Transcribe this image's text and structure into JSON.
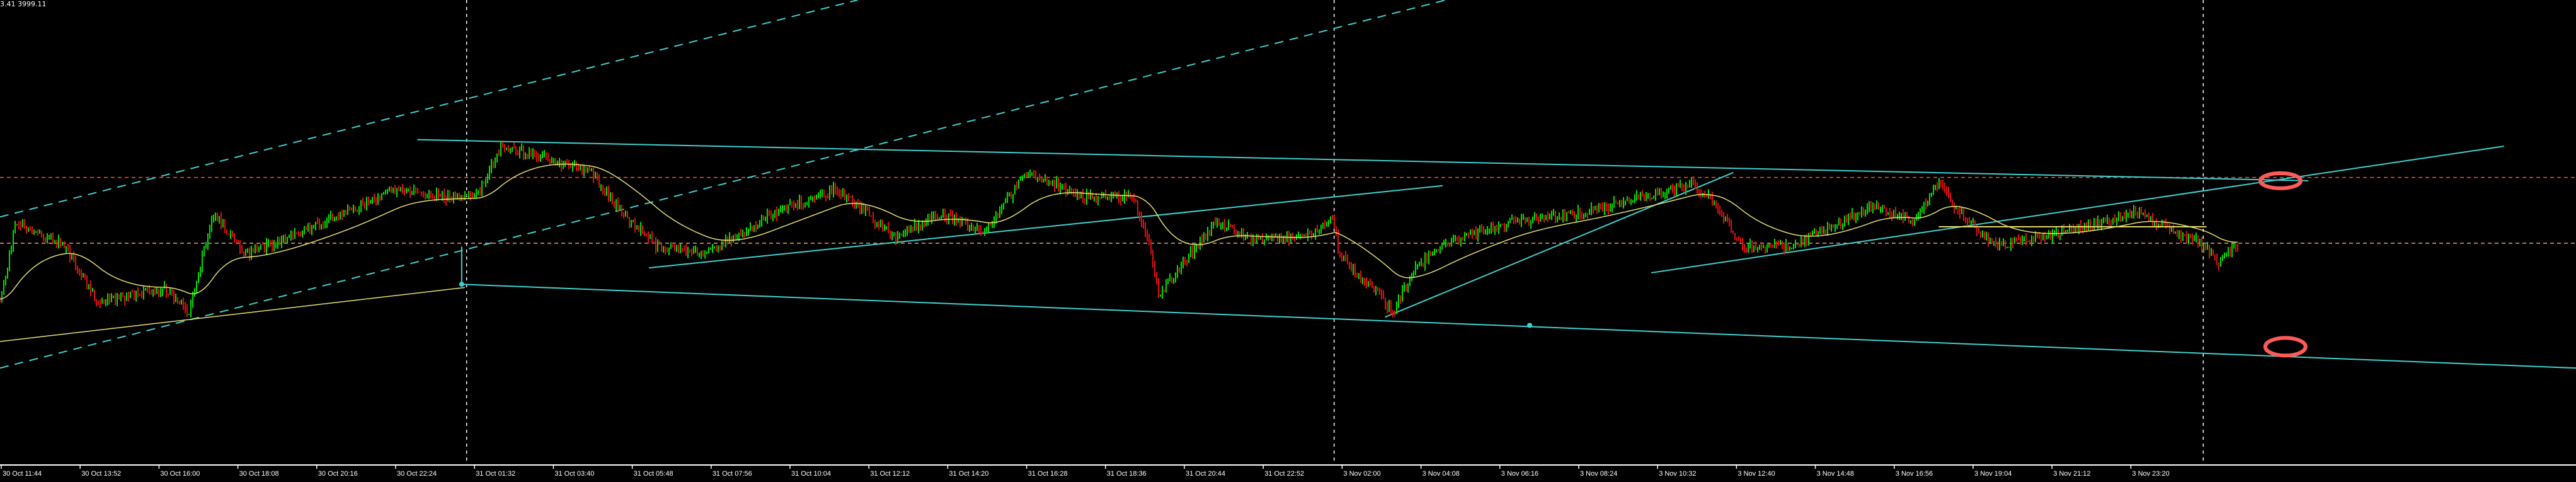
{
  "header": {
    "ohlc_text": "3.41 3999.11"
  },
  "colors": {
    "background": "#000000",
    "bull_bar": "#00e000",
    "bear_bar": "#e01010",
    "trendline": "#40d0d0",
    "moving_average": "#e8e070",
    "resistance_line": "#ff5040",
    "price_line": "#e8a080",
    "highlight_circle": "#ff5a5a",
    "grid_separator": "#ffffff"
  },
  "chart_data": {
    "type": "candlestick",
    "title": "",
    "grid": false,
    "x_tick_labels": [
      "30 Oct 11:44",
      "30 Oct 13:52",
      "30 Oct 16:00",
      "30 Oct 18:08",
      "30 Oct 20:16",
      "30 Oct 22:24",
      "31 Oct 01:32",
      "31 Oct 03:40",
      "31 Oct 05:48",
      "31 Oct 07:56",
      "31 Oct 10:04",
      "31 Oct 12:12",
      "31 Oct 14:20",
      "31 Oct 16:28",
      "31 Oct 18:36",
      "31 Oct 20:44",
      "31 Oct 22:52",
      "3 Nov 02:00",
      "3 Nov 04:08",
      "3 Nov 06:16",
      "3 Nov 08:24",
      "3 Nov 10:32",
      "3 Nov 12:40",
      "3 Nov 14:48",
      "3 Nov 16:56",
      "3 Nov 19:04",
      "3 Nov 21:12",
      "3 Nov 23:20"
    ],
    "session_separators": [
      "30 Oct/31 Oct",
      "31 Oct/3 Nov",
      "3 Nov/4 Nov"
    ],
    "annotations": [
      "highlight circle at upper channel line",
      "highlight circle at lower channel line"
    ]
  }
}
